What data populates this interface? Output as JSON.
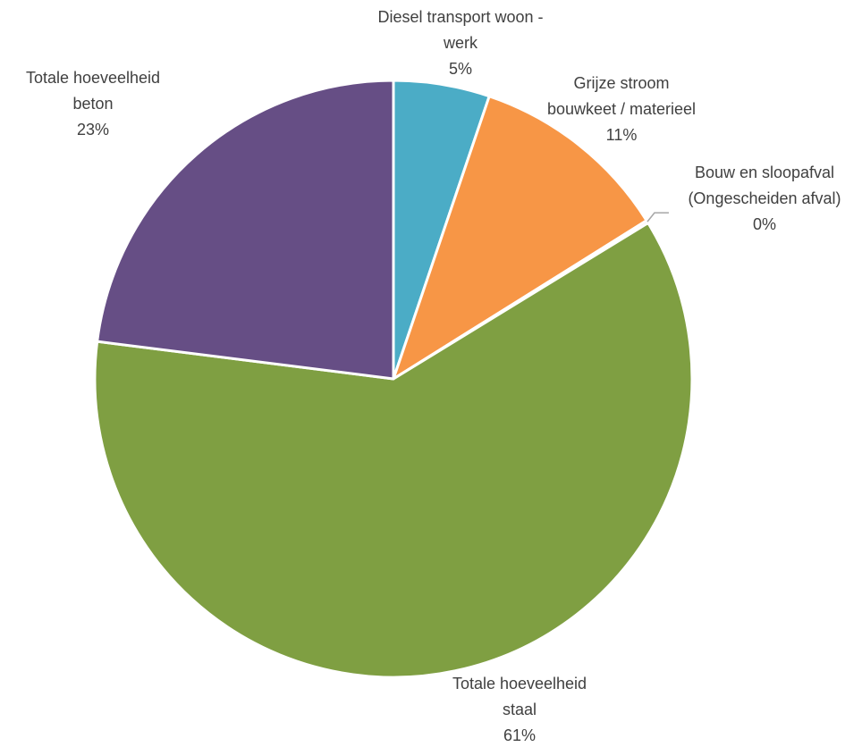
{
  "chart_data": {
    "type": "pie",
    "title": "",
    "slices": [
      {
        "label": [
          "Diesel transport woon -",
          "werk"
        ],
        "percent_label": "5%",
        "value": 5.2,
        "color": "#4BACC6"
      },
      {
        "label": [
          "Grijze stroom",
          "bouwkeet / materieel"
        ],
        "percent_label": "11%",
        "value": 10.9,
        "color": "#F79646"
      },
      {
        "label": [
          "Bouw en sloopafval",
          "(Ongescheiden afval)"
        ],
        "percent_label": "0%",
        "value": 0.15,
        "color": "#C0504D"
      },
      {
        "label": [
          "Totale hoeveelheid",
          "staal"
        ],
        "percent_label": "61%",
        "value": 60.75,
        "color": "#7F9F42"
      },
      {
        "label": [
          "Totale hoeveelheid",
          "beton"
        ],
        "percent_label": "23%",
        "value": 23.0,
        "color": "#664E85"
      }
    ],
    "legend": "none",
    "start_angle": "12 o'clock",
    "direction": "clockwise"
  }
}
